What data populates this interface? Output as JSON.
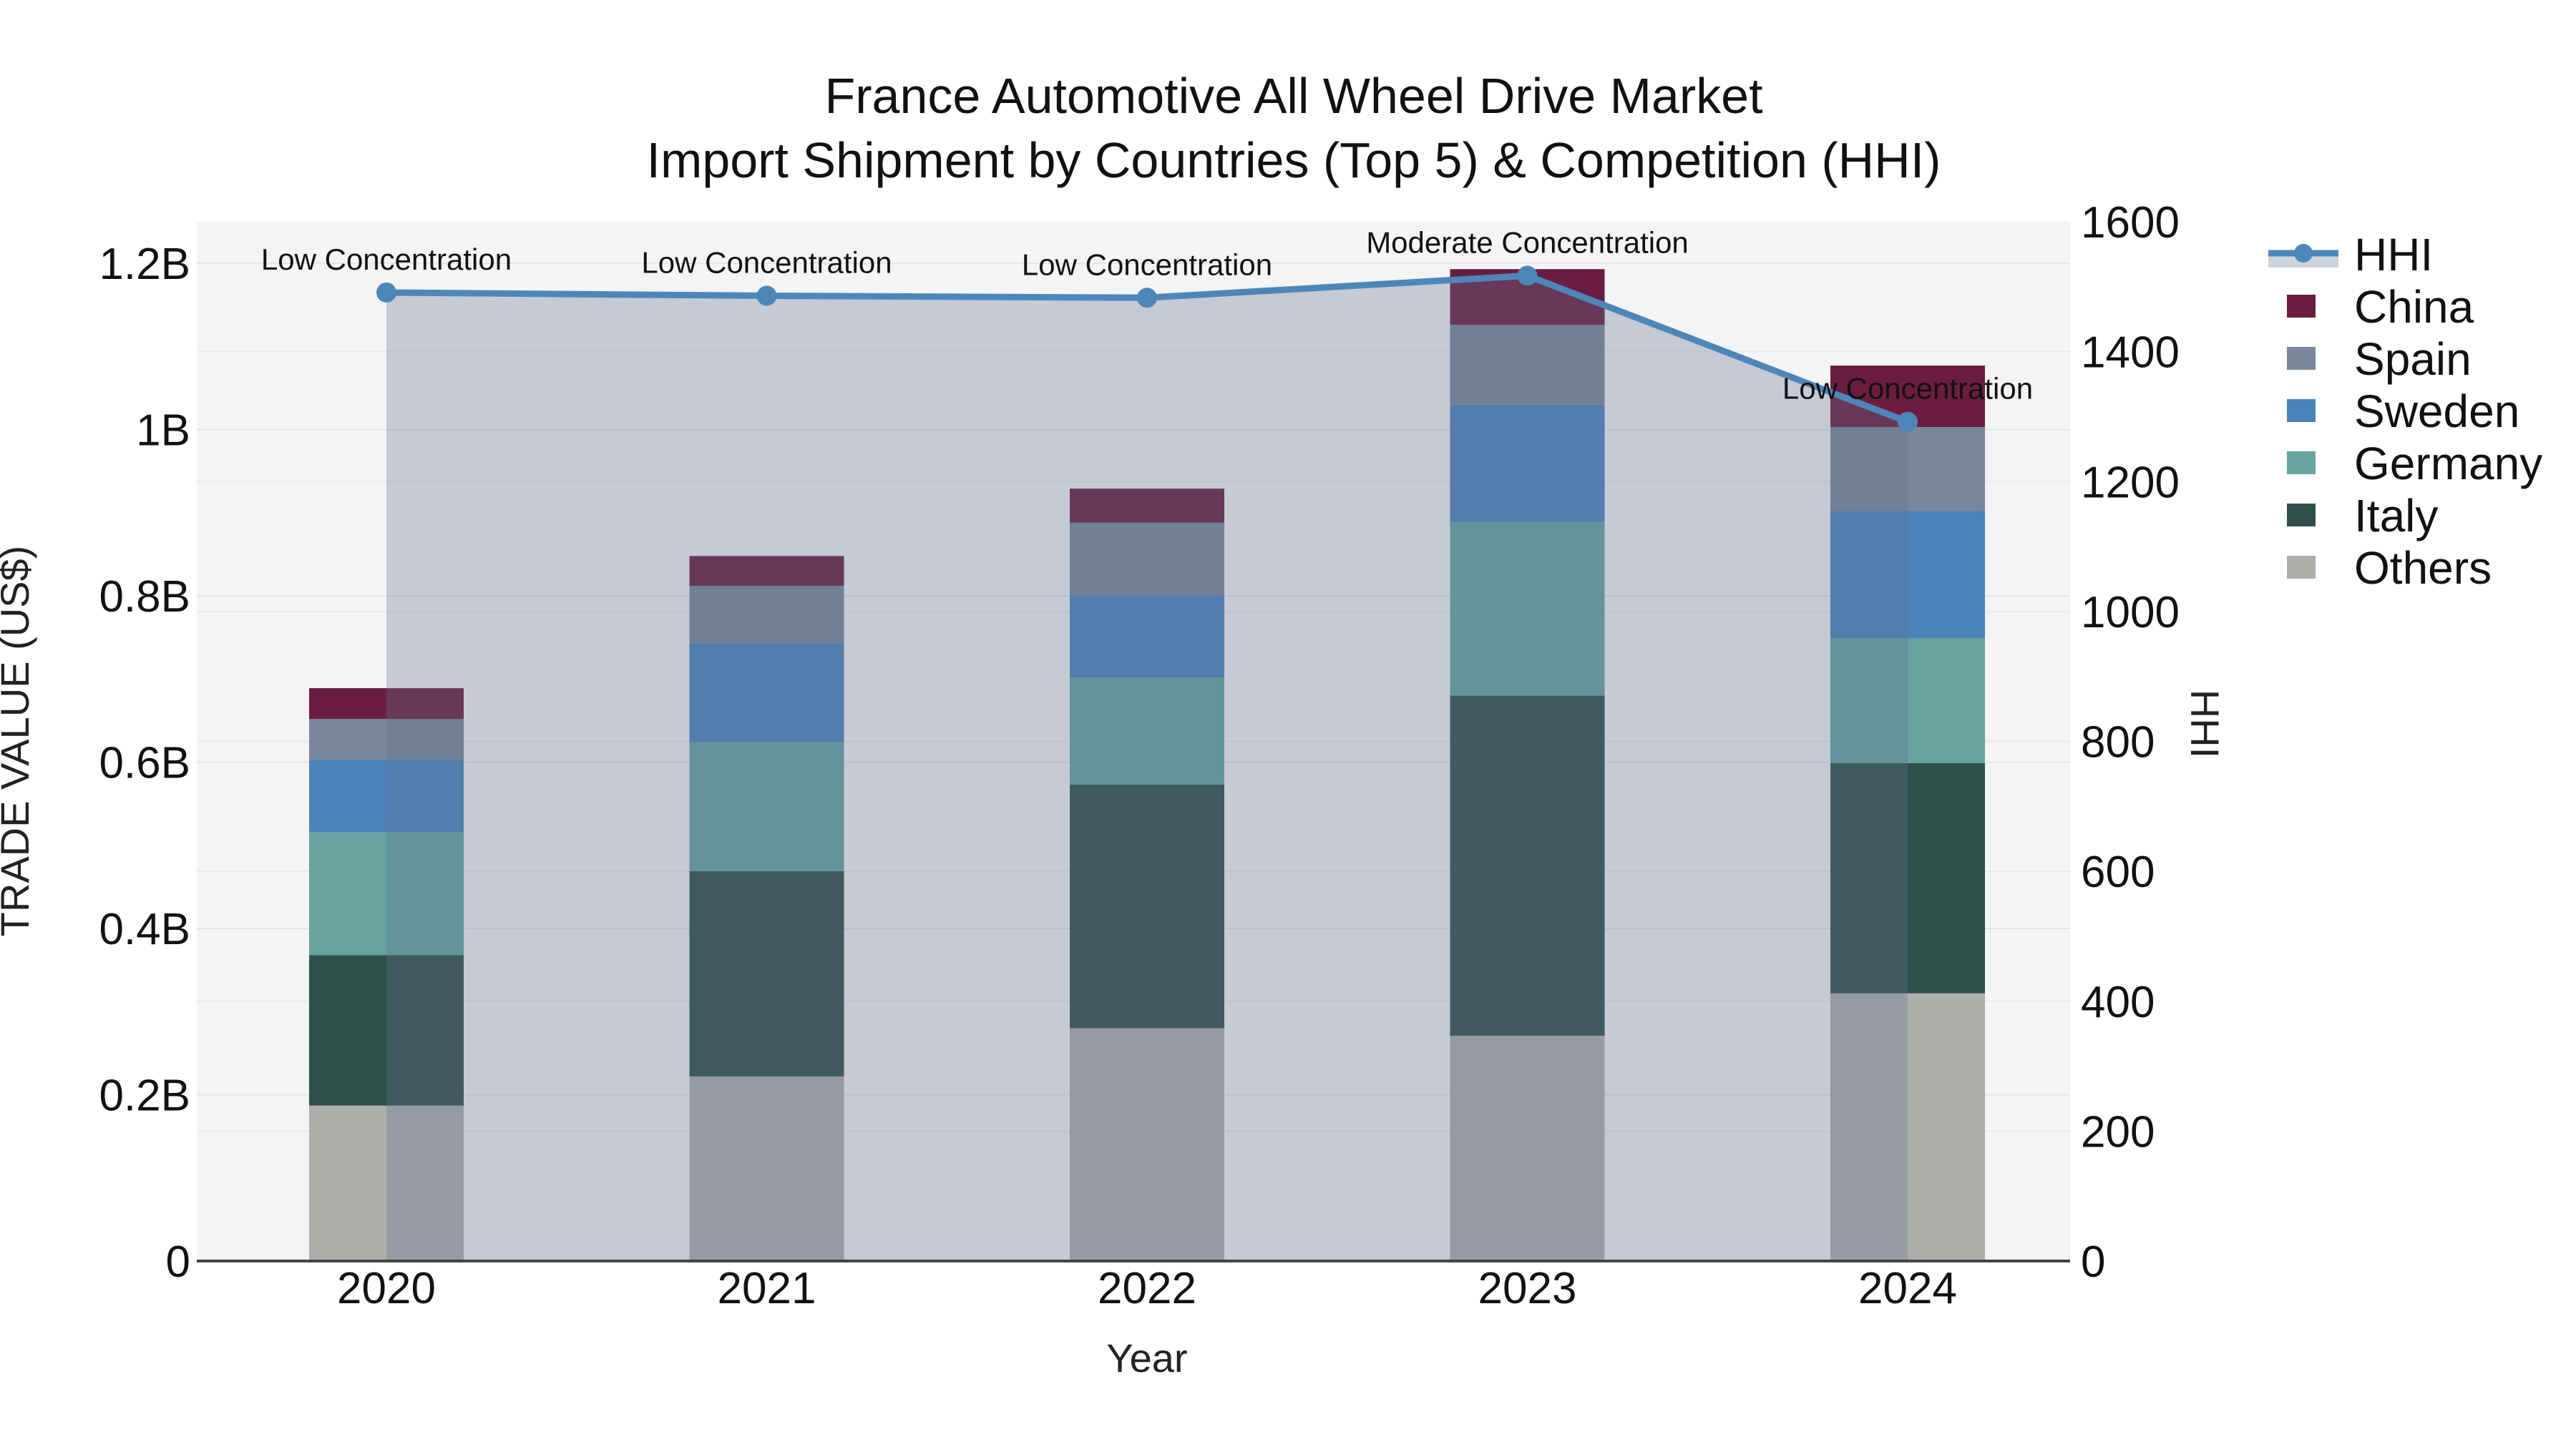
{
  "title": {
    "line1": "France Automotive All Wheel Drive Market",
    "line2": "Import Shipment by Countries (Top 5) & Competition (HHI)"
  },
  "x_axis": {
    "title": "Year"
  },
  "left_axis": {
    "title": "TRADE VALUE (US$)",
    "ticks": [
      "0",
      "0.2B",
      "0.4B",
      "0.6B",
      "0.8B",
      "1B",
      "1.2B"
    ],
    "tick_values": [
      0,
      0.2,
      0.4,
      0.6,
      0.8,
      1.0,
      1.2
    ],
    "max": 1.25
  },
  "right_axis": {
    "title": "HHI",
    "ticks": [
      0,
      200,
      400,
      600,
      800,
      1000,
      1200,
      1400,
      1600
    ],
    "max": 1600
  },
  "legend": [
    {
      "label": "HHI",
      "type": "line",
      "color": "#4d87ba"
    },
    {
      "label": "China",
      "type": "swatch",
      "color": "#6b1d3f"
    },
    {
      "label": "Spain",
      "type": "swatch",
      "color": "#78879a"
    },
    {
      "label": "Sweden",
      "type": "swatch",
      "color": "#4a82ba"
    },
    {
      "label": "Germany",
      "type": "swatch",
      "color": "#66a3a1"
    },
    {
      "label": "Italy",
      "type": "swatch",
      "color": "#2f5049"
    },
    {
      "label": "Others",
      "type": "swatch",
      "color": "#aeaeab"
    }
  ],
  "chart_data": {
    "type": "combo-stacked-bar-line",
    "unit": "billions US$",
    "categories": [
      "2020",
      "2021",
      "2022",
      "2023",
      "2024"
    ],
    "stack_order_bottom_to_top": [
      "Others",
      "Italy",
      "Germany",
      "Sweden",
      "Spain",
      "China"
    ],
    "series": [
      {
        "name": "China",
        "color": "#6b1d3f",
        "values": [
          0.037,
          0.036,
          0.041,
          0.067,
          0.074
        ]
      },
      {
        "name": "Spain",
        "color": "#78879a",
        "values": [
          0.049,
          0.069,
          0.088,
          0.096,
          0.101
        ]
      },
      {
        "name": "Sweden",
        "color": "#4a82ba",
        "values": [
          0.087,
          0.119,
          0.098,
          0.141,
          0.153
        ]
      },
      {
        "name": "Germany",
        "color": "#66a3a1",
        "values": [
          0.148,
          0.155,
          0.129,
          0.209,
          0.15
        ]
      },
      {
        "name": "Italy",
        "color": "#2f5049",
        "values": [
          0.181,
          0.247,
          0.293,
          0.409,
          0.277
        ]
      },
      {
        "name": "Others",
        "color": "#aeaeab",
        "values": [
          0.187,
          0.222,
          0.28,
          0.271,
          0.322
        ]
      }
    ],
    "totals": [
      0.689,
      0.848,
      0.929,
      1.193,
      1.077
    ],
    "hhi": {
      "name": "HHI",
      "color": "#4d87ba",
      "area_color": "rgba(100,115,145,0.32)",
      "values": [
        1491,
        1486,
        1483,
        1517,
        1292
      ]
    },
    "annotations": [
      "Low Concentration",
      "Low Concentration",
      "Low Concentration",
      "Moderate Concentration",
      "Low Concentration"
    ],
    "colors": {
      "plot_background": "#f4f4f4",
      "grid_left": "#e4e4e7",
      "grid_right": "#e9e9ec",
      "axis_line": "#444444"
    }
  }
}
